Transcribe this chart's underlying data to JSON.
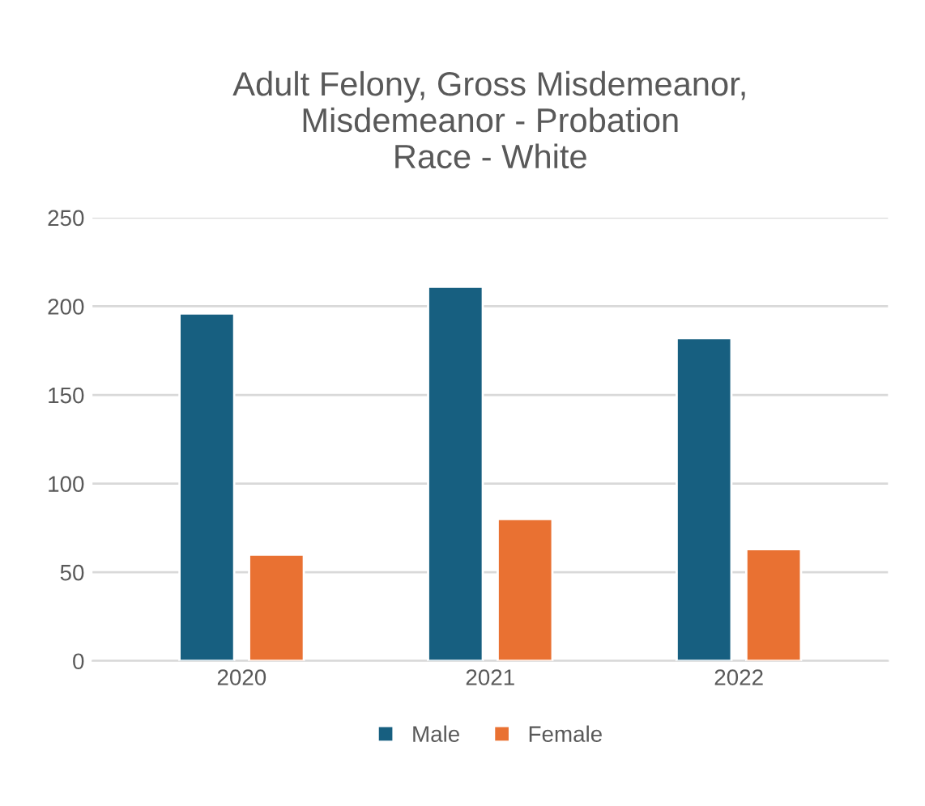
{
  "chart_data": {
    "type": "bar",
    "title": "Adult Felony, Gross Misdemeanor,\nMisdemeanor - Probation\nRace - White",
    "categories": [
      "2020",
      "2021",
      "2022"
    ],
    "series": [
      {
        "name": "Male",
        "color": "#175f80",
        "values": [
          196,
          211,
          182
        ]
      },
      {
        "name": "Female",
        "color": "#e97132",
        "values": [
          60,
          80,
          63
        ]
      }
    ],
    "ylim": [
      0,
      250
    ],
    "yticks": [
      0,
      50,
      100,
      150,
      200,
      250
    ],
    "grid": "y",
    "legend": "bottom"
  }
}
